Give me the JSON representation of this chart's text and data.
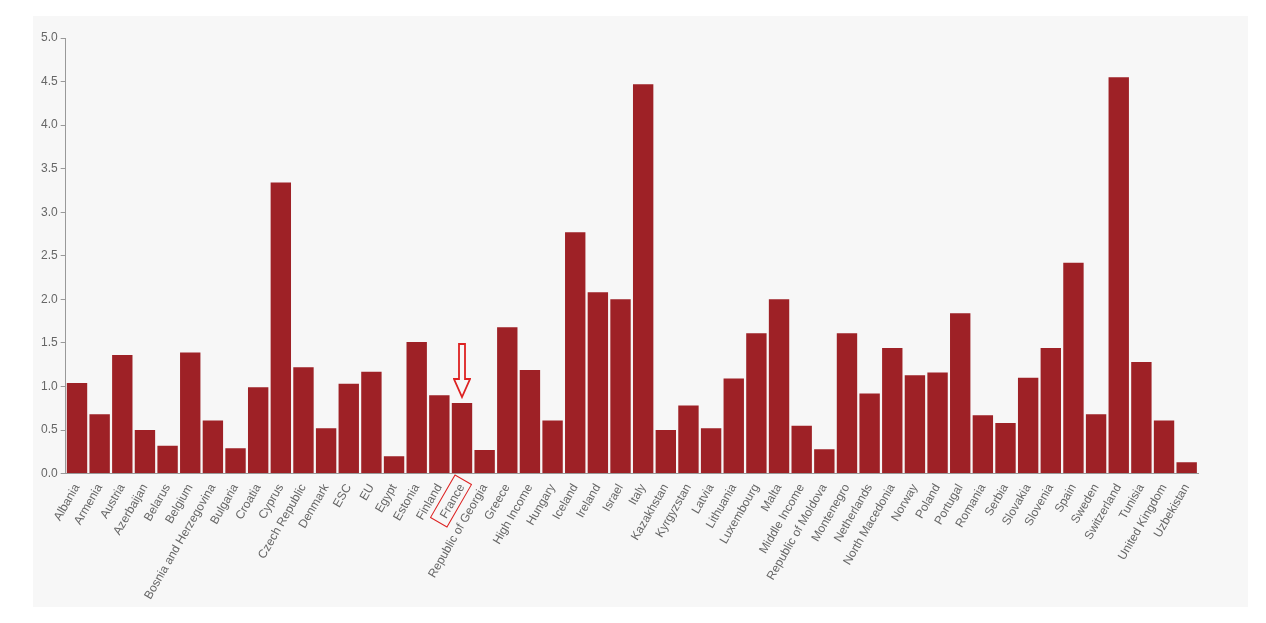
{
  "chart_data": {
    "type": "bar",
    "categories": [
      "Albania",
      "Armenia",
      "Austria",
      "Azerbaijan",
      "Belarus",
      "Belgium",
      "Bosnia and Herzegovina",
      "Bulgaria",
      "Croatia",
      "Cyprus",
      "Czech Republic",
      "Denmark",
      "ESC",
      "EU",
      "Egypt",
      "Estonia",
      "Finland",
      "France",
      "Republic of Georgia",
      "Greece",
      "High Income",
      "Hungary",
      "Iceland",
      "Ireland",
      "Israel",
      "Italy",
      "Kazakhstan",
      "Kyrgyzstan",
      "Latvia",
      "Lithuania",
      "Luxembourg",
      "Malta",
      "Middle Income",
      "Republic of Moldova",
      "Montenegro",
      "Netherlands",
      "North Macedonia",
      "Norway",
      "Poland",
      "Portugal",
      "Romania",
      "Serbia",
      "Slovakia",
      "Slovenia",
      "Spain",
      "Sweden",
      "Switzerland",
      "Tunisia",
      "United Kingdom",
      "Uzbekistan"
    ],
    "values": [
      1.04,
      0.68,
      1.36,
      0.5,
      0.32,
      1.39,
      0.61,
      0.29,
      0.99,
      3.34,
      1.22,
      0.52,
      1.03,
      1.17,
      0.2,
      1.51,
      0.9,
      0.81,
      0.27,
      1.68,
      1.19,
      0.61,
      2.77,
      2.08,
      2.0,
      4.47,
      0.5,
      0.78,
      0.52,
      1.09,
      1.61,
      2.0,
      0.55,
      0.28,
      1.61,
      0.92,
      1.44,
      1.13,
      1.16,
      1.84,
      0.67,
      0.58,
      1.1,
      1.44,
      2.42,
      0.68,
      4.55,
      1.28,
      0.61,
      0.13
    ],
    "color": "#9e2126",
    "ylim": [
      0,
      5
    ],
    "yticks": [
      {
        "value": 0,
        "label": "0.0"
      },
      {
        "value": 0.5,
        "label": "0.5"
      },
      {
        "value": 1,
        "label": "1.0"
      },
      {
        "value": 1.5,
        "label": "1.5"
      },
      {
        "value": 2,
        "label": "2.0"
      },
      {
        "value": 2.5,
        "label": "2.5"
      },
      {
        "value": 3,
        "label": "3.0"
      },
      {
        "value": 3.5,
        "label": "3.5"
      },
      {
        "value": 4,
        "label": "4.0"
      },
      {
        "value": 4.5,
        "label": "4.5"
      },
      {
        "value": 5,
        "label": "5.0"
      }
    ],
    "grid": false,
    "legend": false
  }
}
